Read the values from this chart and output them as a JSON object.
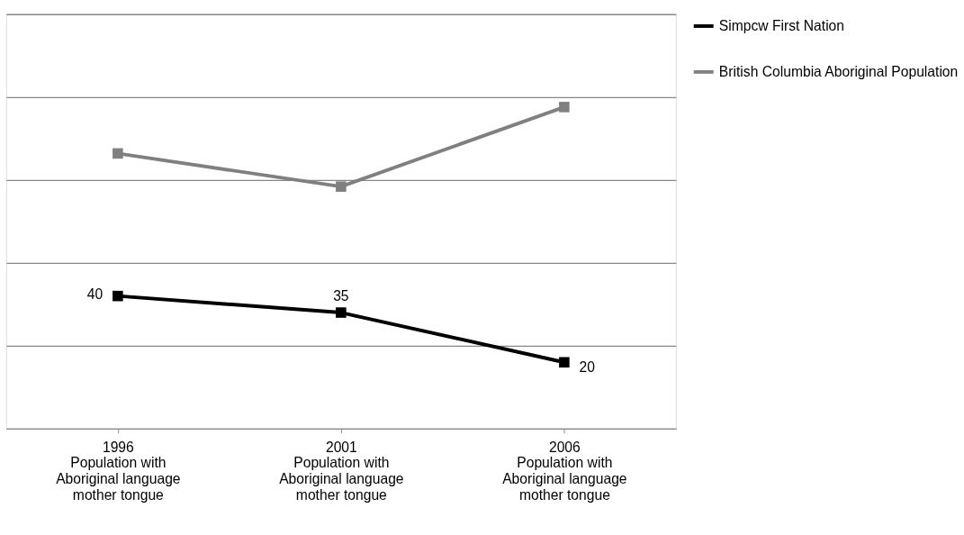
{
  "chart_data": {
    "type": "line",
    "categories": [
      "1996\nPopulation with\nAboriginal language\nmother tongue",
      "2001\nPopulation with\nAboriginal language\nmother tongue",
      "2006\nPopulation with\nAboriginal language\nmother tongue"
    ],
    "series": [
      {
        "name": "Simpcw First Nation",
        "color": "#000000",
        "values": [
          40,
          35,
          20
        ],
        "value_labels": [
          "40",
          "35",
          "20"
        ]
      },
      {
        "name": "British Columbia Aboriginal Population",
        "color": "#808080",
        "values": [
          83,
          73,
          97
        ]
      }
    ],
    "ylim": [
      0,
      125
    ],
    "yticks": [
      {
        "value": 0,
        "label": null
      },
      {
        "value": 25,
        "label": null
      },
      {
        "value": 50,
        "label": null
      },
      {
        "value": 75,
        "label": null
      },
      {
        "value": 100,
        "label": null
      },
      {
        "value": 125,
        "label": null
      }
    ],
    "grid": "y",
    "legend": "right",
    "marker": "square",
    "line_style": "solid"
  }
}
